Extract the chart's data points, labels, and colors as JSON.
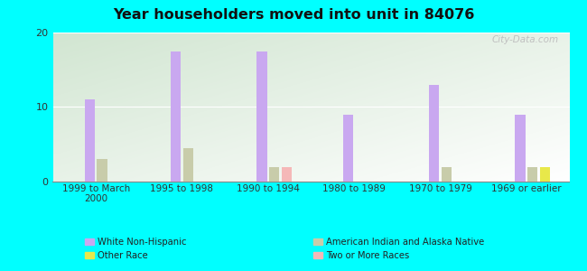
{
  "title": "Year householders moved into unit in 84076",
  "categories": [
    "1999 to March\n2000",
    "1995 to 1998",
    "1990 to 1994",
    "1980 to 1989",
    "1970 to 1979",
    "1969 or earlier"
  ],
  "series": {
    "White Non-Hispanic": [
      11,
      17.5,
      17.5,
      9,
      13,
      9
    ],
    "American Indian and Alaska Native": [
      3,
      4.5,
      2,
      0,
      2,
      2
    ],
    "Two or More Races": [
      0,
      0,
      2,
      0,
      0,
      0
    ],
    "Other Race": [
      0,
      0,
      0,
      0,
      0,
      2
    ]
  },
  "colors": {
    "White Non-Hispanic": "#c9a8f0",
    "American Indian and Alaska Native": "#c8ccaa",
    "Two or More Races": "#f5b8b8",
    "Other Race": "#e8e84a"
  },
  "ylim": [
    0,
    20
  ],
  "yticks": [
    0,
    10,
    20
  ],
  "background_color": "#00ffff",
  "watermark": "City-Data.com",
  "bar_width": 0.12,
  "legend_left": [
    [
      "White Non-Hispanic",
      "#c9a8f0"
    ],
    [
      "Other Race",
      "#e8e84a"
    ]
  ],
  "legend_right": [
    [
      "American Indian and Alaska Native",
      "#c8ccaa"
    ],
    [
      "Two or More Races",
      "#f5b8b8"
    ]
  ]
}
